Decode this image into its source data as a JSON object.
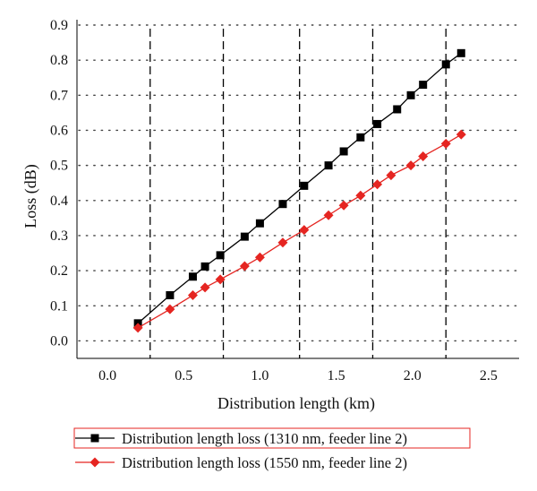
{
  "chart_data": {
    "type": "line",
    "xlabel": "Distribution length (km)",
    "ylabel": "Loss (dB)",
    "xlim": [
      -0.2,
      2.7
    ],
    "ylim": [
      -0.05,
      0.9
    ],
    "xticks": [
      0.0,
      0.5,
      1.0,
      1.5,
      2.0,
      2.5
    ],
    "xtick_labels": [
      "0.0",
      "0.5",
      "1.0",
      "1.5",
      "2.0",
      "2.5"
    ],
    "yticks": [
      0.0,
      0.1,
      0.2,
      0.3,
      0.4,
      0.5,
      0.6,
      0.7,
      0.8,
      0.9
    ],
    "ytick_labels": [
      "0.0",
      "0.1",
      "0.2",
      "0.3",
      "0.4",
      "0.5",
      "0.6",
      "0.7",
      "0.8",
      "0.9"
    ],
    "grid": "horizontal dotted",
    "vertical_dashed_lines": [
      0.28,
      0.76,
      1.26,
      1.74,
      2.22
    ],
    "legend_position": "bottom",
    "series": [
      {
        "name": "Distribution length loss (1310 nm, feeder line 2)",
        "color": "#000000",
        "marker": "square",
        "x": [
          0.2,
          0.41,
          0.56,
          0.64,
          0.74,
          0.9,
          1.0,
          1.15,
          1.29,
          1.45,
          1.55,
          1.66,
          1.77,
          1.9,
          1.99,
          2.07,
          2.22,
          2.32
        ],
        "y": [
          0.05,
          0.13,
          0.183,
          0.212,
          0.244,
          0.297,
          0.335,
          0.39,
          0.442,
          0.5,
          0.54,
          0.58,
          0.618,
          0.66,
          0.7,
          0.73,
          0.788,
          0.82
        ]
      },
      {
        "name": "Distribution length loss (1550 nm, feeder line 2)",
        "color": "#e52521",
        "marker": "diamond",
        "x": [
          0.2,
          0.41,
          0.56,
          0.64,
          0.74,
          0.9,
          1.0,
          1.15,
          1.29,
          1.45,
          1.55,
          1.66,
          1.77,
          1.86,
          1.99,
          2.07,
          2.22,
          2.32
        ],
        "y": [
          0.037,
          0.09,
          0.13,
          0.152,
          0.175,
          0.213,
          0.238,
          0.28,
          0.316,
          0.358,
          0.386,
          0.414,
          0.446,
          0.472,
          0.5,
          0.526,
          0.562,
          0.588
        ]
      }
    ]
  }
}
